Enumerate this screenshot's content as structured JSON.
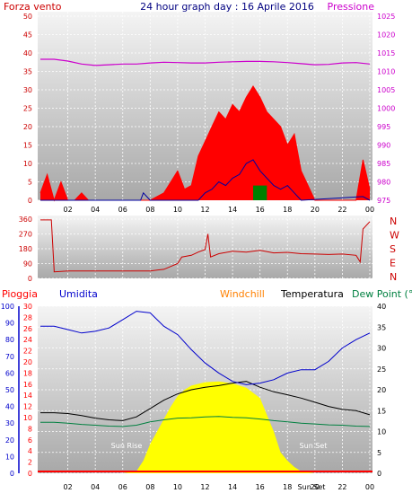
{
  "header": {
    "left": "Forza vento",
    "title": "24 hour graph day : 16 Aprile 2016",
    "right": "Pressione"
  },
  "colors": {
    "wind": "#ff0000",
    "gust": "#0000a0",
    "calm": "#008000",
    "pressure": "#cc00cc",
    "direction": "#cc0000",
    "rain": "#ff0000",
    "humidity": "#0000cc",
    "windchill": "#ff8000",
    "temperature": "#000000",
    "dewpoint": "#008040",
    "solar": "#ffff00",
    "sun_label": "#ffffff"
  },
  "time_ticks": [
    "02",
    "04",
    "06",
    "08",
    "10",
    "12",
    "14",
    "16",
    "18",
    "20",
    "22",
    "00"
  ],
  "chart_data": [
    {
      "id": "wind-pressure",
      "type": "line",
      "y_left_label": "Forza vento",
      "y_left_ticks": [
        0,
        5,
        10,
        15,
        20,
        25,
        30,
        35,
        40,
        45,
        50
      ],
      "y_left_lim": [
        0,
        50
      ],
      "y_right_label": "Pressione",
      "y_right_ticks": [
        975,
        980,
        985,
        990,
        995,
        1000,
        1005,
        1010,
        1015,
        1020,
        1025
      ],
      "y_right_lim": [
        975,
        1025
      ],
      "series": [
        {
          "key": "wind_speed",
          "points": [
            [
              0,
              2
            ],
            [
              0.5,
              7
            ],
            [
              1,
              0
            ],
            [
              1.5,
              5
            ],
            [
              2,
              0
            ],
            [
              2.5,
              0
            ],
            [
              3,
              2
            ],
            [
              3.5,
              0
            ],
            [
              4,
              0
            ],
            [
              6,
              0
            ],
            [
              7,
              0
            ],
            [
              7.5,
              0
            ],
            [
              8,
              0
            ],
            [
              9,
              2
            ],
            [
              9.5,
              5
            ],
            [
              10,
              8
            ],
            [
              10.5,
              3
            ],
            [
              11,
              4
            ],
            [
              11.5,
              12
            ],
            [
              12,
              16
            ],
            [
              12.5,
              20
            ],
            [
              13,
              24
            ],
            [
              13.5,
              22
            ],
            [
              14,
              26
            ],
            [
              14.5,
              24
            ],
            [
              15,
              28
            ],
            [
              15.5,
              31
            ],
            [
              16,
              28
            ],
            [
              16.5,
              24
            ],
            [
              17,
              22
            ],
            [
              17.5,
              20
            ],
            [
              18,
              15
            ],
            [
              18.5,
              18
            ],
            [
              19,
              8
            ],
            [
              19.5,
              4
            ],
            [
              20,
              0
            ],
            [
              21,
              0
            ],
            [
              22,
              0
            ],
            [
              23,
              0
            ],
            [
              23.5,
              11
            ],
            [
              24,
              3
            ]
          ]
        },
        {
          "key": "wind_gust",
          "points": [
            [
              0,
              0
            ],
            [
              7.3,
              0
            ],
            [
              7.5,
              2
            ],
            [
              8,
              0
            ],
            [
              11.5,
              0
            ],
            [
              12,
              2
            ],
            [
              12.5,
              3
            ],
            [
              13,
              5
            ],
            [
              13.5,
              4
            ],
            [
              14,
              6
            ],
            [
              14.5,
              7
            ],
            [
              15,
              10
            ],
            [
              15.5,
              11
            ],
            [
              16,
              8
            ],
            [
              16.5,
              6
            ],
            [
              17,
              4
            ],
            [
              17.5,
              3
            ],
            [
              18,
              4
            ],
            [
              18.5,
              2
            ],
            [
              19,
              0
            ],
            [
              23.5,
              1
            ],
            [
              24,
              0
            ]
          ]
        },
        {
          "key": "wind_calm",
          "points": [
            [
              15.5,
              4
            ],
            [
              16.5,
              4
            ]
          ]
        },
        {
          "key": "pressure",
          "points": [
            [
              0,
              1013.3
            ],
            [
              1,
              1013.3
            ],
            [
              2,
              1012.8
            ],
            [
              3,
              1012.0
            ],
            [
              4,
              1011.6
            ],
            [
              5,
              1011.8
            ],
            [
              6,
              1012.0
            ],
            [
              7,
              1012.0
            ],
            [
              8,
              1012.3
            ],
            [
              9,
              1012.5
            ],
            [
              10,
              1012.4
            ],
            [
              11,
              1012.3
            ],
            [
              12,
              1012.3
            ],
            [
              13,
              1012.5
            ],
            [
              14,
              1012.6
            ],
            [
              15,
              1012.7
            ],
            [
              16,
              1012.7
            ],
            [
              17,
              1012.6
            ],
            [
              18,
              1012.4
            ],
            [
              19,
              1012.1
            ],
            [
              20,
              1011.8
            ],
            [
              21,
              1011.9
            ],
            [
              22,
              1012.3
            ],
            [
              23,
              1012.4
            ],
            [
              24,
              1012.0
            ]
          ]
        }
      ]
    },
    {
      "id": "wind-direction",
      "type": "line",
      "y_left_ticks": [
        0,
        90,
        180,
        270,
        360
      ],
      "y_left_lim": [
        0,
        360
      ],
      "y_right_labels": [
        "N",
        "W",
        "S",
        "E",
        "N"
      ],
      "series": [
        {
          "key": "direction",
          "points": [
            [
              0,
              355
            ],
            [
              0.8,
              355
            ],
            [
              1,
              50
            ],
            [
              1,
              40
            ],
            [
              2,
              45
            ],
            [
              3,
              45
            ],
            [
              4,
              45
            ],
            [
              5,
              45
            ],
            [
              6,
              45
            ],
            [
              7,
              45
            ],
            [
              8,
              45
            ],
            [
              8.5,
              50
            ],
            [
              9,
              55
            ],
            [
              10,
              90
            ],
            [
              10.3,
              130
            ],
            [
              11,
              140
            ],
            [
              11.5,
              160
            ],
            [
              12,
              175
            ],
            [
              12.2,
              270
            ],
            [
              12.4,
              130
            ],
            [
              13,
              150
            ],
            [
              14,
              165
            ],
            [
              15,
              160
            ],
            [
              16,
              170
            ],
            [
              17,
              155
            ],
            [
              18,
              158
            ],
            [
              19,
              150
            ],
            [
              20,
              148
            ],
            [
              21,
              145
            ],
            [
              22,
              148
            ],
            [
              23,
              140
            ],
            [
              23.3,
              100
            ],
            [
              23.5,
              300
            ],
            [
              24,
              345
            ]
          ]
        }
      ]
    },
    {
      "id": "rain-humidity-temperature",
      "type": "line",
      "legend": [
        "Pioggia",
        "Umidita",
        "Windchill",
        "Temperatura",
        "Dew Point (°C"
      ],
      "y_rain_ticks": [
        0,
        2,
        4,
        6,
        8,
        10,
        12,
        14,
        16,
        18,
        20,
        22,
        24,
        26,
        28,
        30
      ],
      "y_humidity_ticks": [
        0,
        10,
        20,
        30,
        40,
        50,
        60,
        70,
        80,
        90,
        100
      ],
      "y_temp_ticks": [
        0,
        5,
        10,
        15,
        20,
        25,
        30,
        35,
        40
      ],
      "y_temp_lim": [
        0,
        40
      ],
      "sun_labels": [
        "Sun Rise",
        "Sun Set",
        "Sun Set"
      ],
      "series": [
        {
          "key": "humidity",
          "points": [
            [
              0,
              88
            ],
            [
              1,
              88
            ],
            [
              2,
              86
            ],
            [
              3,
              84
            ],
            [
              4,
              85
            ],
            [
              5,
              87
            ],
            [
              6,
              92
            ],
            [
              7,
              97
            ],
            [
              8,
              96
            ],
            [
              9,
              88
            ],
            [
              10,
              83
            ],
            [
              11,
              74
            ],
            [
              12,
              66
            ],
            [
              13,
              60
            ],
            [
              14,
              55
            ],
            [
              15,
              53
            ],
            [
              16,
              54
            ],
            [
              17,
              56
            ],
            [
              18,
              60
            ],
            [
              19,
              62
            ],
            [
              20,
              62
            ],
            [
              21,
              67
            ],
            [
              22,
              75
            ],
            [
              23,
              80
            ],
            [
              24,
              84
            ]
          ]
        },
        {
          "key": "temperature",
          "points": [
            [
              0,
              14.5
            ],
            [
              1,
              14.5
            ],
            [
              2,
              14.3
            ],
            [
              3,
              13.8
            ],
            [
              4,
              13.2
            ],
            [
              5,
              12.8
            ],
            [
              6,
              12.6
            ],
            [
              7,
              13.5
            ],
            [
              8,
              15.5
            ],
            [
              9,
              17.5
            ],
            [
              10,
              19
            ],
            [
              11,
              20
            ],
            [
              12,
              20.6
            ],
            [
              13,
              21
            ],
            [
              14,
              21.6
            ],
            [
              15,
              22
            ],
            [
              16,
              20.6
            ],
            [
              17,
              19.5
            ],
            [
              18,
              18.8
            ],
            [
              19,
              18
            ],
            [
              20,
              17
            ],
            [
              21,
              16
            ],
            [
              22,
              15.3
            ],
            [
              23,
              15
            ],
            [
              24,
              14
            ]
          ]
        },
        {
          "key": "dewpoint",
          "points": [
            [
              0,
              12.2
            ],
            [
              1,
              12.2
            ],
            [
              2,
              12
            ],
            [
              3,
              11.7
            ],
            [
              4,
              11.5
            ],
            [
              5,
              11.3
            ],
            [
              6,
              11.2
            ],
            [
              7,
              11.5
            ],
            [
              8,
              12.3
            ],
            [
              9,
              12.8
            ],
            [
              10,
              13.2
            ],
            [
              11,
              13.3
            ],
            [
              12,
              13.5
            ],
            [
              13,
              13.6
            ],
            [
              14,
              13.4
            ],
            [
              15,
              13.3
            ],
            [
              16,
              13.0
            ],
            [
              17,
              12.6
            ],
            [
              18,
              12.3
            ],
            [
              19,
              12.0
            ],
            [
              20,
              11.8
            ],
            [
              21,
              11.6
            ],
            [
              22,
              11.5
            ],
            [
              23,
              11.3
            ],
            [
              24,
              11.2
            ]
          ]
        },
        {
          "key": "solar",
          "points": [
            [
              6,
              0
            ],
            [
              7,
              0.5
            ],
            [
              7.5,
              3
            ],
            [
              8,
              7
            ],
            [
              8.5,
              10
            ],
            [
              9,
              13
            ],
            [
              9.5,
              16
            ],
            [
              10,
              18.5
            ],
            [
              10.5,
              20
            ],
            [
              11,
              21
            ],
            [
              12,
              21.8
            ],
            [
              13,
              22
            ],
            [
              14,
              21.5
            ],
            [
              15,
              20.5
            ],
            [
              16,
              18
            ],
            [
              16.5,
              14
            ],
            [
              17,
              10
            ],
            [
              17.5,
              5
            ],
            [
              18,
              3
            ],
            [
              18.5,
              1.5
            ],
            [
              19,
              0.5
            ],
            [
              20,
              0
            ]
          ]
        }
      ]
    }
  ]
}
